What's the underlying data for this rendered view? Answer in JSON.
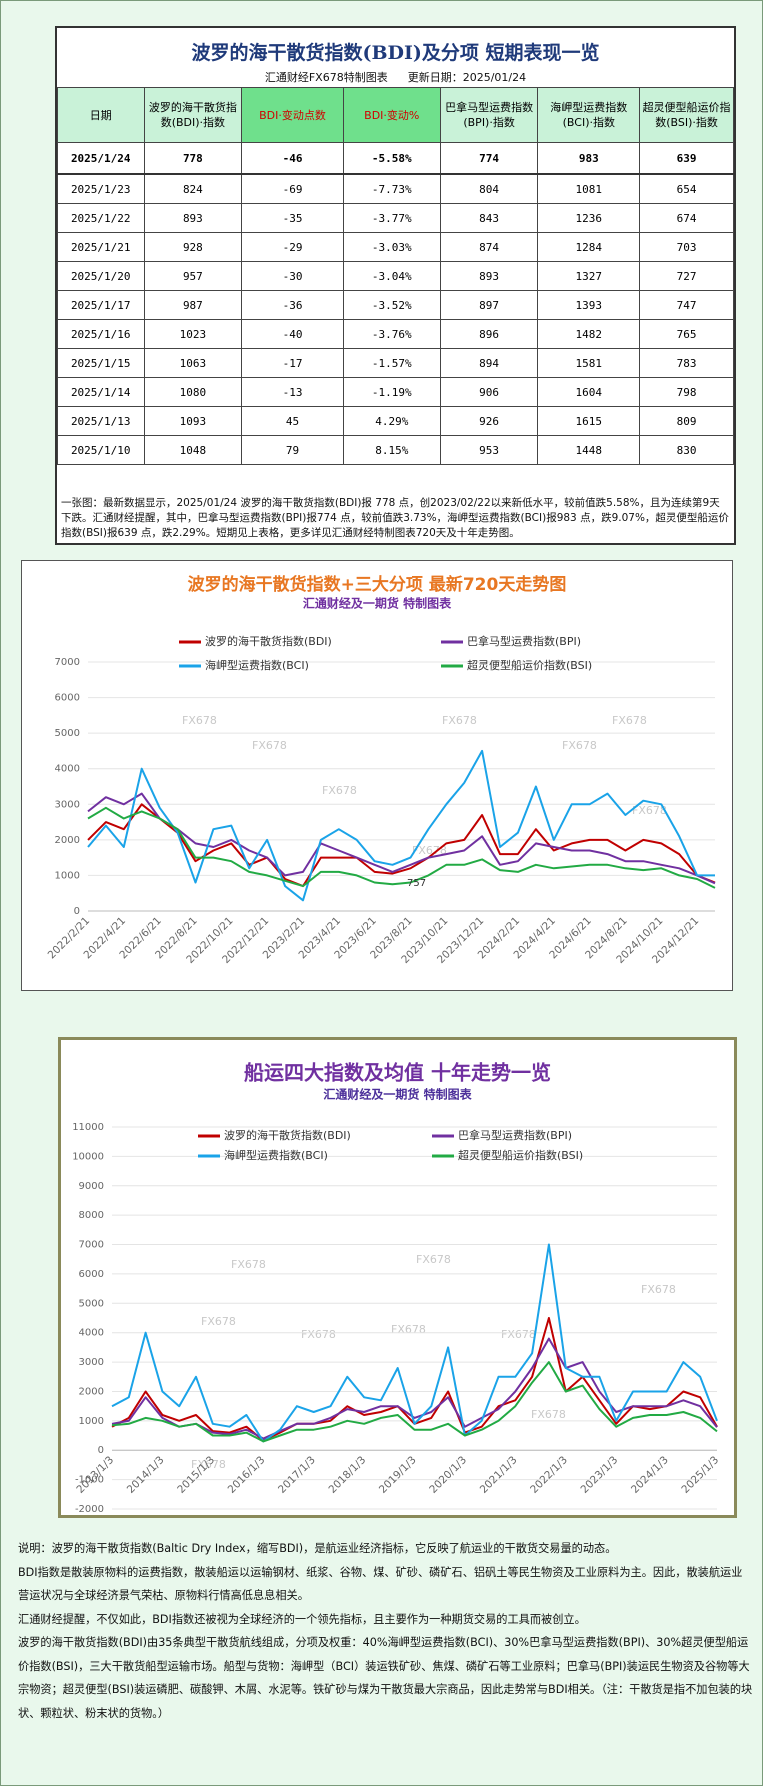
{
  "table": {
    "title": "波罗的海干散货指数(BDI)及分项  短期表现一览",
    "subtitle": [
      "汇通财经FX678特制图表",
      "更新日期：2025/01/24"
    ],
    "header": [
      "日期",
      "波罗的海干散货指数(BDI)·指数",
      "BDI·变动点数",
      "BDI·变动%",
      "巴拿马型运费指数(BPI)·指数",
      "海岬型运费指数(BCI)·指数",
      "超灵便型船运价指数(BSI)·指数"
    ],
    "rows": [
      [
        "2025/1/24",
        778,
        -46,
        "-5.58%",
        774,
        983,
        639
      ],
      [
        "2025/1/23",
        824,
        -69,
        "-7.73%",
        804,
        1081,
        654
      ],
      [
        "2025/1/22",
        893,
        -35,
        "-3.77%",
        843,
        1236,
        674
      ],
      [
        "2025/1/21",
        928,
        -29,
        "-3.03%",
        874,
        1284,
        703
      ],
      [
        "2025/1/20",
        957,
        -30,
        "-3.04%",
        893,
        1327,
        727
      ],
      [
        "2025/1/17",
        987,
        -36,
        "-3.52%",
        897,
        1393,
        747
      ],
      [
        "2025/1/16",
        1023,
        -40,
        "-3.76%",
        896,
        1482,
        765
      ],
      [
        "2025/1/15",
        1063,
        -17,
        "-1.57%",
        894,
        1581,
        783
      ],
      [
        "2025/1/14",
        1080,
        -13,
        "-1.19%",
        906,
        1604,
        798
      ],
      [
        "2025/1/13",
        1093,
        45,
        "4.29%",
        926,
        1615,
        809
      ],
      [
        "2025/1/10",
        1048,
        79,
        "8.15%",
        953,
        1448,
        830
      ]
    ],
    "note": "一张图：最新数据显示，2025/01/24 波罗的海干散货指数(BDI)报 778 点，创2023/02/22以来新低水平，较前值跌5.58%，且为连续第9天下跌。汇通财经提醒，其中，巴拿马型运费指数(BPI)报774 点，较前值跌3.73%，海岬型运费指数(BCI)报983 点，跌9.07%，超灵便型船运价指数(BSI)报639 点，跌2.29%。短期见上表格，更多详见汇通财经特制图表720天及十年走势图。"
  },
  "chart_data": [
    {
      "type": "line",
      "title": "波罗的海干散货指数+三大分项  最新720天走势图",
      "subtitle": "汇通财经及一期货  特制图表",
      "watermark": "FX678",
      "annotation": "757",
      "categories": [
        "2022/2/21",
        null,
        "2022/4/21",
        null,
        "2022/6/21",
        null,
        "2022/8/21",
        null,
        "2022/10/21",
        null,
        "2022/12/21",
        null,
        "2023/2/21",
        null,
        "2023/4/21",
        null,
        "2023/6/21",
        null,
        "2023/8/21",
        null,
        "2023/10/21",
        null,
        "2023/12/21",
        null,
        "2024/2/21",
        null,
        "2024/4/21",
        null,
        "2024/6/21",
        null,
        "2024/8/21",
        null,
        "2024/10/21",
        null,
        "2024/12/21",
        null
      ],
      "series": [
        {
          "name": "波罗的海干散货指数(BDI)",
          "color": "#c00000",
          "values": [
            2000,
            2500,
            2300,
            3000,
            2600,
            2200,
            1400,
            1700,
            1900,
            1300,
            1500,
            900,
            700,
            1500,
            1500,
            1500,
            1100,
            1050,
            1200,
            1500,
            1900,
            2000,
            2700,
            1600,
            1600,
            2300,
            1700,
            1900,
            2000,
            2000,
            1700,
            2000,
            1900,
            1600,
            1000,
            800
          ]
        },
        {
          "name": "巴拿马型运费指数(BPI)",
          "color": "#7030a0",
          "values": [
            2800,
            3200,
            3000,
            3300,
            2600,
            2300,
            1900,
            1800,
            2000,
            1700,
            1500,
            1000,
            1100,
            1900,
            1700,
            1500,
            1300,
            1100,
            1300,
            1500,
            1600,
            1700,
            2100,
            1300,
            1400,
            1900,
            1800,
            1700,
            1700,
            1600,
            1400,
            1400,
            1300,
            1200,
            1000,
            780
          ]
        },
        {
          "name": "海岬型运费指数(BCI)",
          "color": "#1aa3e8",
          "values": [
            1800,
            2400,
            1800,
            4000,
            2900,
            2200,
            800,
            2300,
            2400,
            1200,
            2000,
            700,
            300,
            2000,
            2300,
            2000,
            1400,
            1300,
            1500,
            2300,
            3000,
            3600,
            4500,
            1800,
            2200,
            3500,
            2000,
            3000,
            3000,
            3300,
            2700,
            3100,
            3000,
            2100,
            1000,
            1000
          ]
        },
        {
          "name": "超灵便型船运价指数(BSI)",
          "color": "#22aa44",
          "values": [
            2600,
            2900,
            2600,
            2800,
            2600,
            2300,
            1500,
            1500,
            1400,
            1100,
            1000,
            850,
            700,
            1100,
            1100,
            1000,
            800,
            750,
            800,
            1000,
            1300,
            1300,
            1450,
            1150,
            1100,
            1300,
            1200,
            1250,
            1300,
            1300,
            1200,
            1150,
            1200,
            1000,
            900,
            650
          ]
        }
      ],
      "ylim": [
        0,
        7000
      ],
      "yticks": [
        0,
        1000,
        2000,
        3000,
        4000,
        5000,
        6000,
        7000
      ],
      "grid": true
    },
    {
      "type": "line",
      "title": "船运四大指数及均值 十年走势一览",
      "subtitle": "汇通财经及一期货 特制图表",
      "watermark": "FX678",
      "categories": [
        "2013/1/3",
        null,
        null,
        "2014/1/3",
        null,
        null,
        "2015/1/3",
        null,
        null,
        "2016/1/3",
        null,
        null,
        "2017/1/3",
        null,
        null,
        "2018/1/3",
        null,
        null,
        "2019/1/3",
        null,
        null,
        "2020/1/3",
        null,
        null,
        "2021/1/3",
        null,
        null,
        "2022/1/3",
        null,
        null,
        "2023/1/3",
        null,
        null,
        "2024/1/3",
        null,
        null,
        "2025/1/3"
      ],
      "series": [
        {
          "name": "波罗的海干散货指数(BDI)",
          "color": "#c00000",
          "values": [
            800,
            1100,
            2000,
            1200,
            1000,
            1200,
            650,
            600,
            800,
            330,
            600,
            900,
            900,
            1000,
            1500,
            1200,
            1300,
            1500,
            900,
            1100,
            2000,
            600,
            800,
            1500,
            1700,
            2500,
            4500,
            2000,
            2500,
            1700,
            900,
            1500,
            1400,
            1500,
            2000,
            1800,
            800
          ]
        },
        {
          "name": "巴拿马型运费指数(BPI)",
          "color": "#7030a0",
          "values": [
            900,
            1000,
            1800,
            1100,
            800,
            900,
            600,
            550,
            700,
            400,
            650,
            900,
            900,
            1100,
            1400,
            1300,
            1500,
            1500,
            1100,
            1300,
            1800,
            800,
            1100,
            1400,
            2000,
            2800,
            3800,
            2800,
            3000,
            2000,
            1300,
            1500,
            1500,
            1500,
            1700,
            1500,
            780
          ]
        },
        {
          "name": "海岬型运费指数(BCI)",
          "color": "#1aa3e8",
          "values": [
            1500,
            1800,
            4000,
            2000,
            1500,
            2500,
            900,
            800,
            1200,
            300,
            700,
            1500,
            1300,
            1500,
            2500,
            1800,
            1700,
            2800,
            900,
            1500,
            3500,
            500,
            1000,
            2500,
            2500,
            3300,
            7000,
            2800,
            2500,
            2500,
            1000,
            2000,
            2000,
            2000,
            3000,
            2500,
            1000
          ]
        },
        {
          "name": "超灵便型船运价指数(BSI)",
          "color": "#22aa44",
          "values": [
            850,
            900,
            1100,
            1000,
            800,
            900,
            500,
            500,
            600,
            300,
            500,
            700,
            700,
            800,
            1000,
            900,
            1100,
            1200,
            700,
            700,
            900,
            500,
            700,
            1000,
            1500,
            2300,
            3000,
            2000,
            2200,
            1400,
            800,
            1100,
            1200,
            1200,
            1300,
            1100,
            640
          ]
        }
      ],
      "ylim": [
        -2000,
        11000
      ],
      "yticks": [
        -2000,
        -1000,
        0,
        1000,
        2000,
        3000,
        4000,
        5000,
        6000,
        7000,
        8000,
        9000,
        10000,
        11000
      ],
      "grid": true
    }
  ],
  "notes": [
    "说明：波罗的海干散货指数(Baltic Dry Index，缩写BDI)，是航运业经济指标，它反映了航运业的干散货交易量的动态。",
    "BDI指数是散装原物料的运费指数，散装船运以运输钢材、纸浆、谷物、煤、矿砂、磷矿石、铝矾土等民生物资及工业原料为主。因此，散装航运业营运状况与全球经济景气荣枯、原物料行情高低息息相关。",
    "汇通财经提醒，不仅如此，BDI指数还被视为全球经济的一个领先指标，且主要作为一种期货交易的工具而被创立。",
    "波罗的海干散货指数(BDI)由35条典型干散货航线组成，分项及权重：40%海岬型运费指数(BCI)、30%巴拿马型运费指数(BPI)、30%超灵便型船运价指数(BSI)，三大干散货船型运输市场。船型与货物：海岬型（BCI）装运铁矿砂、焦煤、磷矿石等工业原料；巴拿马(BPI)装运民生物资及谷物等大宗物资；超灵便型(BSI)装运磷肥、碳酸钾、木屑、水泥等。铁矿砂与煤为干散货最大宗商品，因此走势常与BDI相关。（注：干散货是指不加包装的块状、颗粒状、粉末状的货物。）"
  ]
}
